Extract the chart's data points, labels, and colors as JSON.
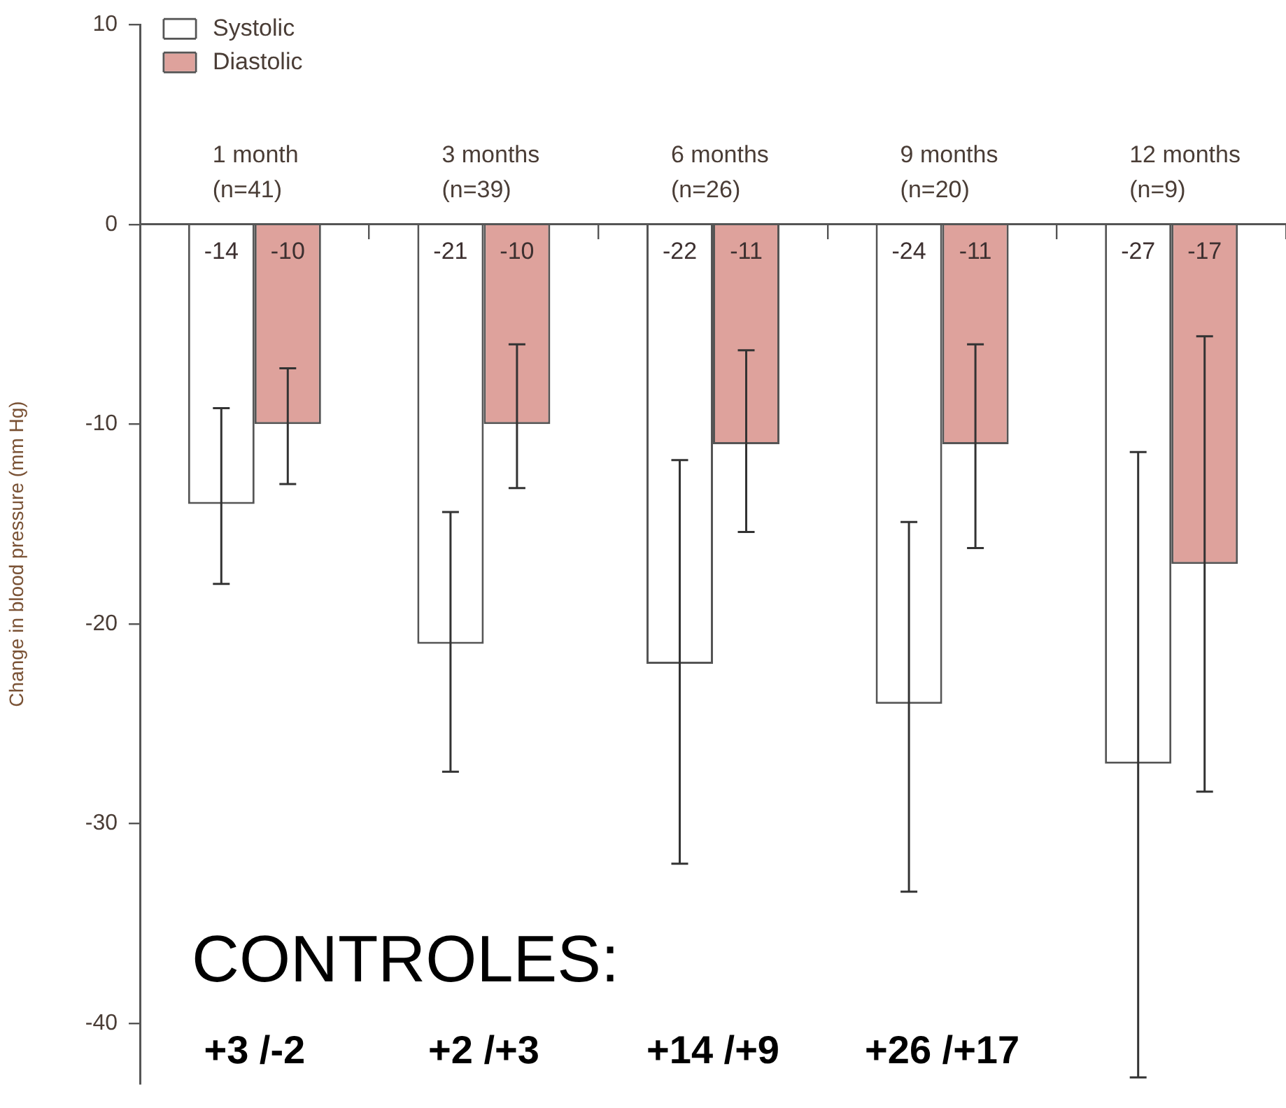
{
  "chart_data": {
    "type": "bar",
    "ylabel": "Change in blood pressure (mm Hg)",
    "categories": [
      "1 month\n(n=41)",
      "3 months\n(n=39)",
      "6 months\n(n=26)",
      "9 months\n(n=20)",
      "12 months\n(n=9)"
    ],
    "series": [
      {
        "name": "Systolic",
        "color": "#ffffff",
        "values": [
          -14,
          -21,
          -22,
          -24,
          -27
        ],
        "errors": [
          [
            -18.0,
            -9.2
          ],
          [
            -27.4,
            -14.4
          ],
          [
            -32.0,
            -11.8
          ],
          [
            -33.4,
            -14.9
          ],
          [
            -42.7,
            -11.4
          ]
        ]
      },
      {
        "name": "Diastolic",
        "color": "#dea29c",
        "values": [
          -10,
          -10,
          -11,
          -11,
          -17
        ],
        "errors": [
          [
            -13.0,
            -7.2
          ],
          [
            -13.2,
            -6.0
          ],
          [
            -15.4,
            -6.3
          ],
          [
            -16.2,
            -6.0
          ],
          [
            -28.4,
            -5.6
          ]
        ]
      }
    ],
    "ylim": [
      -43,
      10
    ],
    "yticks": [
      10,
      0,
      -10,
      -20,
      -30,
      -40
    ],
    "grid": false,
    "legend": "top left",
    "data_labels": true,
    "annotations": [
      "CONTROLES:",
      "+3 /-2",
      "+2 /+3",
      "+14 /+9",
      "+26 /+17"
    ]
  }
}
